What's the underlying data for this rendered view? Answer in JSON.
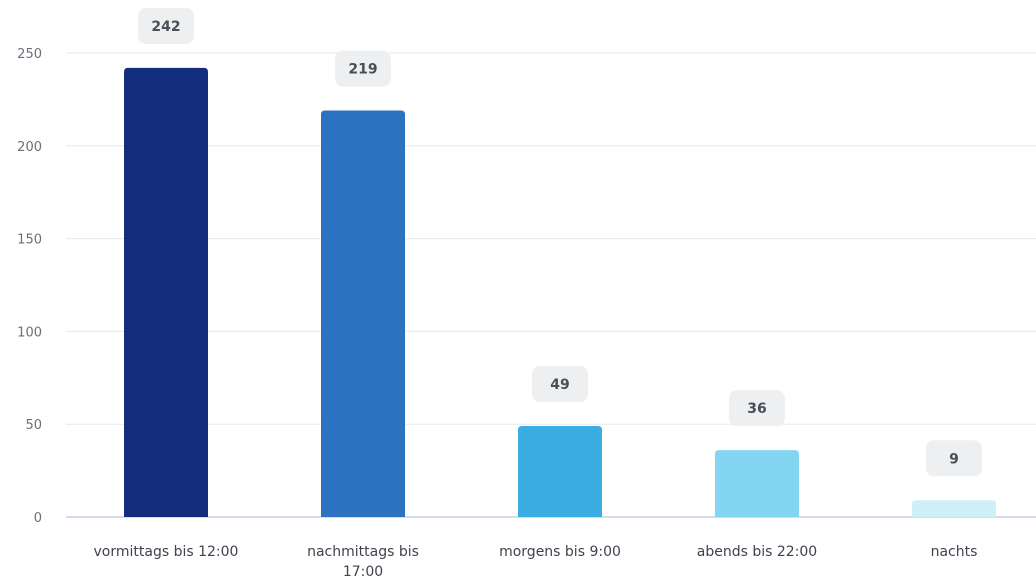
{
  "chart_data": {
    "type": "bar",
    "categories": [
      "vormittags bis 12:00",
      "nachmittags bis 17:00",
      "morgens bis 9:00",
      "abends bis 22:00",
      "nachts"
    ],
    "category_lines": [
      [
        "vormittags bis 12:00"
      ],
      [
        "nachmittags bis",
        "17:00"
      ],
      [
        "morgens bis 9:00"
      ],
      [
        "abends bis 22:00"
      ],
      [
        "nachts"
      ]
    ],
    "values": [
      242,
      219,
      49,
      36,
      9
    ],
    "data_labels": [
      "242",
      "219",
      "49",
      "36",
      "9"
    ],
    "colors": [
      "#132d7d",
      "#2b72c1",
      "#3aaee3",
      "#83d5f1",
      "#d0f0f8"
    ],
    "ylim": [
      0,
      250
    ],
    "yticks": [
      0,
      50,
      100,
      150,
      200,
      250
    ],
    "grid": true,
    "legend": "none",
    "title": "",
    "xlabel": "",
    "ylabel": ""
  }
}
